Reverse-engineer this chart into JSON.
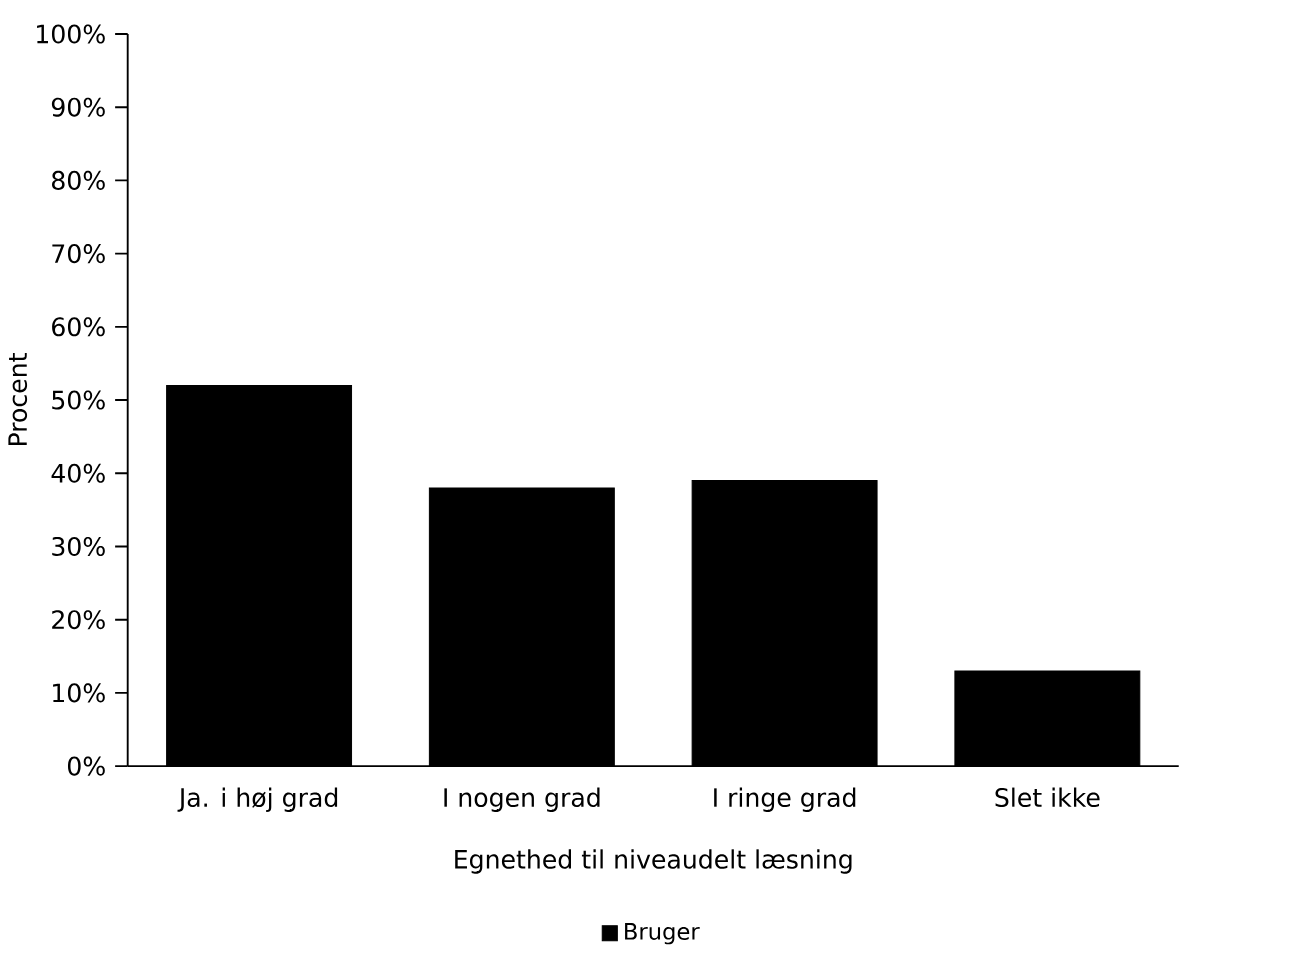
{
  "chart_data": {
    "type": "bar",
    "xlabel": "Egnethed til niveaudelt læsning",
    "ylabel": "Procent",
    "categories": [
      "Ja. i høj grad",
      "I nogen grad",
      "I ringe grad",
      "Slet ikke"
    ],
    "series": [
      {
        "name": "Bruger",
        "color": "#000000",
        "values": [
          52,
          38,
          39,
          13
        ]
      }
    ],
    "ylim": [
      0,
      100
    ],
    "yticks": [
      {
        "value": 0,
        "label": "0%"
      },
      {
        "value": 10,
        "label": "10%"
      },
      {
        "value": 20,
        "label": "20%"
      },
      {
        "value": 30,
        "label": "30%"
      },
      {
        "value": 40,
        "label": "40%"
      },
      {
        "value": 50,
        "label": "50%"
      },
      {
        "value": 60,
        "label": "60%"
      },
      {
        "value": 70,
        "label": "70%"
      },
      {
        "value": 80,
        "label": "80%"
      },
      {
        "value": 90,
        "label": "90%"
      },
      {
        "value": 100,
        "label": "100%"
      }
    ],
    "grid": false,
    "legend": "bottom"
  }
}
